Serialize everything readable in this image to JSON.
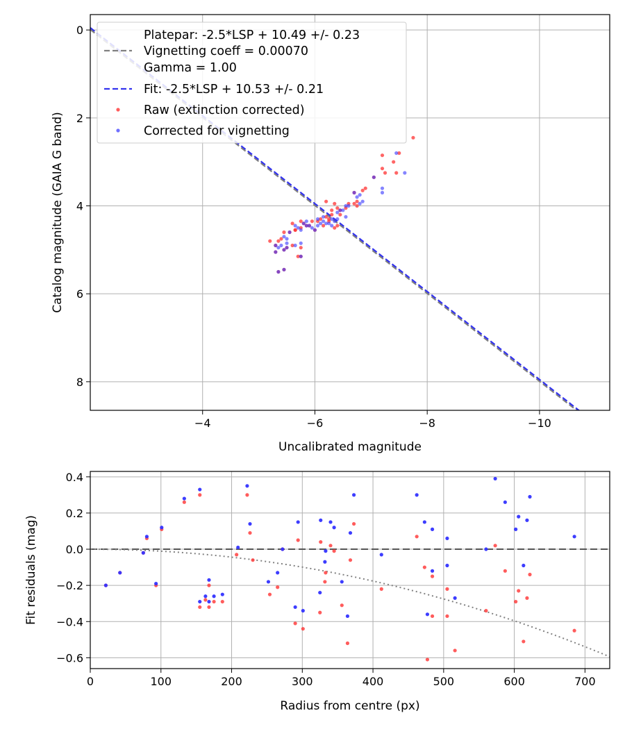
{
  "chart_data": [
    {
      "type": "scatter",
      "xlabel": "Uncalibrated magnitude",
      "ylabel": "Catalog magnitude (GAIA G band)",
      "xlim": [
        -2.0,
        -11.25
      ],
      "ylim": [
        8.65,
        -0.35
      ],
      "xticks": [
        -4,
        -6,
        -8,
        -10
      ],
      "yticks": [
        0,
        2,
        4,
        6,
        8
      ],
      "grid": true,
      "legend_location": "top-left",
      "colors": {
        "platepar": "#808080",
        "fit": "#3333ee",
        "raw": "#ff3333",
        "corrected": "#3333ff"
      },
      "legend": {
        "platepar_lines": [
          "Platepar: -2.5*LSP + 10.49 +/- 0.23",
          "Vignetting coeff = 0.00070",
          "Gamma = 1.00"
        ],
        "fit": "Fit: -2.5*LSP + 10.53 +/- 0.21",
        "raw": "Raw (extinction corrected)",
        "corrected": "Corrected for vignetting"
      },
      "lines": [
        {
          "name": "Platepar",
          "slope": -1.0,
          "intercept": -2.01,
          "x_range": [
            -2.0,
            -11.25
          ]
        },
        {
          "name": "Fit",
          "slope": -1.0,
          "intercept": -2.05,
          "x_range": [
            -2.0,
            -11.25
          ]
        }
      ],
      "series": [
        {
          "name": "Raw (extinction corrected)",
          "points": [
            [
              -7.75,
              2.45
            ],
            [
              -7.2,
              2.85
            ],
            [
              -7.5,
              2.8
            ],
            [
              -7.4,
              3.0
            ],
            [
              -7.2,
              3.15
            ],
            [
              -7.25,
              3.25
            ],
            [
              -7.45,
              3.25
            ],
            [
              -7.05,
              3.35
            ],
            [
              -6.9,
              3.6
            ],
            [
              -6.85,
              3.65
            ],
            [
              -6.7,
              3.7
            ],
            [
              -6.75,
              3.9
            ],
            [
              -6.75,
              4.0
            ],
            [
              -6.6,
              3.95
            ],
            [
              -6.45,
              4.1
            ],
            [
              -6.4,
              4.05
            ],
            [
              -6.2,
              3.9
            ],
            [
              -6.35,
              3.95
            ],
            [
              -6.3,
              4.2
            ],
            [
              -6.25,
              4.3
            ],
            [
              -6.1,
              4.3
            ],
            [
              -6.05,
              4.35
            ],
            [
              -5.9,
              4.45
            ],
            [
              -5.75,
              4.35
            ],
            [
              -5.6,
              4.4
            ],
            [
              -5.85,
              4.45
            ],
            [
              -5.75,
              4.5
            ],
            [
              -5.65,
              4.55
            ],
            [
              -5.55,
              4.6
            ],
            [
              -5.45,
              4.6
            ],
            [
              -5.4,
              4.75
            ],
            [
              -5.35,
              4.8
            ],
            [
              -5.2,
              4.8
            ],
            [
              -5.3,
              4.9
            ],
            [
              -5.5,
              4.95
            ],
            [
              -5.45,
              5.0
            ],
            [
              -5.3,
              5.05
            ],
            [
              -5.7,
              5.15
            ],
            [
              -5.75,
              5.15
            ],
            [
              -5.75,
              4.95
            ],
            [
              -5.6,
              4.9
            ],
            [
              -5.35,
              5.5
            ],
            [
              -5.45,
              5.45
            ],
            [
              -6.35,
              4.5
            ],
            [
              -6.4,
              4.45
            ],
            [
              -6.0,
              4.55
            ],
            [
              -5.95,
              4.35
            ],
            [
              -6.15,
              4.45
            ],
            [
              -6.25,
              4.35
            ],
            [
              -6.45,
              4.2
            ],
            [
              -6.7,
              3.95
            ],
            [
              -6.55,
              4.05
            ],
            [
              -5.65,
              4.55
            ],
            [
              -5.8,
              4.4
            ],
            [
              -6.2,
              4.25
            ],
            [
              -6.3,
              4.1
            ]
          ]
        },
        {
          "name": "Corrected for vignetting",
          "points": [
            [
              -7.45,
              2.8
            ],
            [
              -7.6,
              3.25
            ],
            [
              -7.2,
              3.6
            ],
            [
              -7.2,
              3.7
            ],
            [
              -7.05,
              3.35
            ],
            [
              -6.8,
              3.75
            ],
            [
              -6.75,
              3.8
            ],
            [
              -6.85,
              3.9
            ],
            [
              -6.8,
              3.95
            ],
            [
              -6.7,
              3.7
            ],
            [
              -6.55,
              4.0
            ],
            [
              -6.55,
              4.25
            ],
            [
              -6.5,
              4.1
            ],
            [
              -6.4,
              4.15
            ],
            [
              -6.3,
              4.3
            ],
            [
              -6.35,
              4.35
            ],
            [
              -6.3,
              4.45
            ],
            [
              -6.25,
              4.4
            ],
            [
              -6.15,
              4.35
            ],
            [
              -6.05,
              4.45
            ],
            [
              -6.0,
              4.55
            ],
            [
              -5.95,
              4.5
            ],
            [
              -5.9,
              4.45
            ],
            [
              -5.85,
              4.35
            ],
            [
              -5.8,
              4.4
            ],
            [
              -5.7,
              4.5
            ],
            [
              -5.65,
              4.45
            ],
            [
              -5.55,
              4.6
            ],
            [
              -5.45,
              4.7
            ],
            [
              -5.5,
              4.75
            ],
            [
              -5.4,
              4.9
            ],
            [
              -5.35,
              4.95
            ],
            [
              -5.3,
              4.9
            ],
            [
              -5.45,
              5.0
            ],
            [
              -5.3,
              5.05
            ],
            [
              -5.5,
              4.95
            ],
            [
              -5.75,
              4.55
            ],
            [
              -5.85,
              4.45
            ],
            [
              -6.05,
              4.3
            ],
            [
              -6.1,
              4.4
            ],
            [
              -6.4,
              4.3
            ],
            [
              -6.45,
              4.1
            ],
            [
              -6.6,
              4.0
            ],
            [
              -5.65,
              4.9
            ],
            [
              -5.75,
              4.85
            ],
            [
              -5.5,
              4.85
            ],
            [
              -5.45,
              5.45
            ],
            [
              -5.35,
              5.5
            ],
            [
              -5.75,
              5.15
            ],
            [
              -6.15,
              4.25
            ],
            [
              -6.2,
              4.4
            ]
          ]
        }
      ]
    },
    {
      "type": "scatter",
      "xlabel": "Radius from centre (px)",
      "ylabel": "Fit residuals (mag)",
      "xlim": [
        0,
        735
      ],
      "ylim": [
        -0.66,
        0.43
      ],
      "xticks": [
        0,
        100,
        200,
        300,
        400,
        500,
        600,
        700
      ],
      "yticks": [
        0.4,
        0.2,
        0.0,
        -0.2,
        -0.4,
        -0.6
      ],
      "grid": true,
      "lines": [
        {
          "name": "Zero line",
          "style": "dashed",
          "y": 0.0
        },
        {
          "name": "Vignetting model",
          "style": "dotted",
          "formula": "-1.1e-6*r^2",
          "x_range": [
            0,
            735
          ]
        }
      ],
      "series": [
        {
          "name": "Raw (extinction corrected)",
          "points": [
            [
              22,
              -0.2
            ],
            [
              42,
              -0.13
            ],
            [
              75,
              -0.02
            ],
            [
              80,
              0.06
            ],
            [
              93,
              -0.2
            ],
            [
              101,
              0.11
            ],
            [
              133,
              0.26
            ],
            [
              155,
              0.3
            ],
            [
              155,
              -0.32
            ],
            [
              163,
              -0.28
            ],
            [
              168,
              -0.2
            ],
            [
              168,
              -0.32
            ],
            [
              175,
              -0.29
            ],
            [
              187,
              -0.29
            ],
            [
              207,
              -0.03
            ],
            [
              222,
              0.3
            ],
            [
              226,
              0.09
            ],
            [
              230,
              -0.06
            ],
            [
              254,
              -0.25
            ],
            [
              265,
              -0.21
            ],
            [
              272,
              0.0
            ],
            [
              290,
              -0.41
            ],
            [
              294,
              0.05
            ],
            [
              301,
              -0.44
            ],
            [
              325,
              -0.35
            ],
            [
              326,
              0.04
            ],
            [
              332,
              -0.18
            ],
            [
              333,
              -0.13
            ],
            [
              340,
              0.02
            ],
            [
              345,
              -0.01
            ],
            [
              356,
              -0.31
            ],
            [
              364,
              -0.52
            ],
            [
              368,
              -0.06
            ],
            [
              373,
              0.14
            ],
            [
              412,
              -0.22
            ],
            [
              462,
              0.07
            ],
            [
              473,
              -0.1
            ],
            [
              477,
              -0.61
            ],
            [
              484,
              -0.15
            ],
            [
              484,
              -0.37
            ],
            [
              505,
              -0.22
            ],
            [
              505,
              -0.37
            ],
            [
              516,
              -0.56
            ],
            [
              560,
              -0.34
            ],
            [
              573,
              0.02
            ],
            [
              587,
              -0.12
            ],
            [
              602,
              -0.29
            ],
            [
              606,
              -0.23
            ],
            [
              613,
              -0.51
            ],
            [
              618,
              -0.27
            ],
            [
              622,
              -0.14
            ],
            [
              685,
              -0.45
            ]
          ]
        },
        {
          "name": "Corrected for vignetting",
          "points": [
            [
              22,
              -0.2
            ],
            [
              42,
              -0.13
            ],
            [
              75,
              -0.02
            ],
            [
              80,
              0.07
            ],
            [
              93,
              -0.19
            ],
            [
              101,
              0.12
            ],
            [
              133,
              0.28
            ],
            [
              155,
              0.33
            ],
            [
              155,
              -0.29
            ],
            [
              163,
              -0.26
            ],
            [
              168,
              -0.17
            ],
            [
              168,
              -0.29
            ],
            [
              175,
              -0.26
            ],
            [
              187,
              -0.25
            ],
            [
              209,
              0.01
            ],
            [
              222,
              0.35
            ],
            [
              226,
              0.14
            ],
            [
              252,
              -0.18
            ],
            [
              265,
              -0.13
            ],
            [
              272,
              0.0
            ],
            [
              290,
              -0.32
            ],
            [
              294,
              0.15
            ],
            [
              301,
              -0.34
            ],
            [
              325,
              -0.24
            ],
            [
              326,
              0.16
            ],
            [
              332,
              -0.07
            ],
            [
              333,
              -0.01
            ],
            [
              340,
              0.15
            ],
            [
              345,
              0.12
            ],
            [
              356,
              -0.18
            ],
            [
              364,
              -0.37
            ],
            [
              368,
              0.09
            ],
            [
              373,
              0.3
            ],
            [
              412,
              -0.03
            ],
            [
              462,
              0.3
            ],
            [
              473,
              0.15
            ],
            [
              477,
              -0.36
            ],
            [
              484,
              0.11
            ],
            [
              484,
              -0.12
            ],
            [
              505,
              -0.09
            ],
            [
              505,
              0.06
            ],
            [
              516,
              -0.27
            ],
            [
              560,
              0.0
            ],
            [
              573,
              0.39
            ],
            [
              587,
              0.26
            ],
            [
              602,
              0.11
            ],
            [
              606,
              0.18
            ],
            [
              613,
              -0.09
            ],
            [
              618,
              0.16
            ],
            [
              622,
              0.29
            ],
            [
              685,
              0.07
            ]
          ]
        }
      ]
    }
  ]
}
